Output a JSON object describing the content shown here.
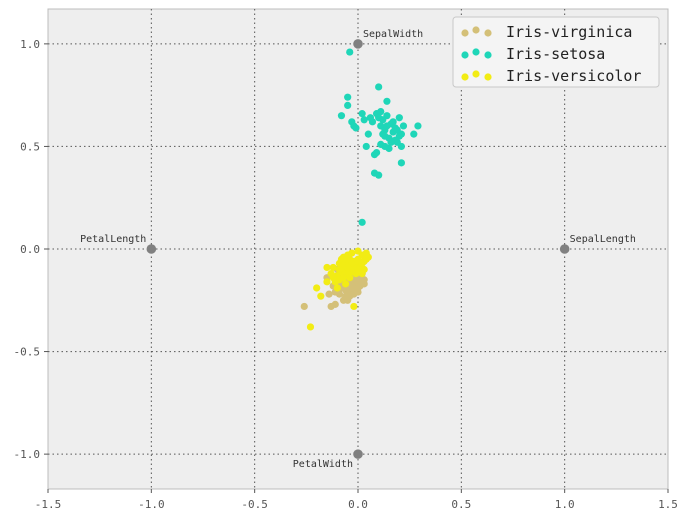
{
  "chart_data": {
    "type": "scatter",
    "title": "",
    "xlabel": "",
    "ylabel": "",
    "xlim": [
      -1.5,
      1.5
    ],
    "ylim": [
      -1.17,
      1.17
    ],
    "grid": true,
    "legend_position": "top-right",
    "xticks": [
      -1.5,
      -1.0,
      -0.5,
      0.0,
      0.5,
      1.0,
      1.5
    ],
    "xtick_labels": [
      "-1.5",
      "-1.0",
      "-0.5",
      "0.0",
      "0.5",
      "1.0",
      "1.5"
    ],
    "yticks": [
      -1.0,
      -0.5,
      0.0,
      0.5,
      1.0
    ],
    "ytick_labels": [
      "-1.0",
      "-0.5",
      "0.0",
      "0.5",
      "1.0"
    ],
    "anchors": [
      {
        "label": "SepalLength",
        "x": 1.0,
        "y": 0.0,
        "label_side": "top-right"
      },
      {
        "label": "SepalWidth",
        "x": 0.0,
        "y": 1.0,
        "label_side": "top-right"
      },
      {
        "label": "PetalLength",
        "x": -1.0,
        "y": 0.0,
        "label_side": "top-left"
      },
      {
        "label": "PetalWidth",
        "x": 0.0,
        "y": -1.0,
        "label_side": "bottom-left"
      }
    ],
    "anchor_color": "#808080",
    "series": [
      {
        "name": "Iris-virginica",
        "color": "#d4c078",
        "points": [
          [
            -0.26,
            -0.28
          ],
          [
            -0.14,
            -0.22
          ],
          [
            -0.13,
            -0.28
          ],
          [
            -0.11,
            -0.27
          ],
          [
            -0.07,
            -0.25
          ],
          [
            -0.05,
            -0.25
          ],
          [
            -0.06,
            -0.2
          ],
          [
            -0.04,
            -0.21
          ],
          [
            -0.02,
            -0.22
          ],
          [
            0.0,
            -0.21
          ],
          [
            -0.13,
            -0.13
          ],
          [
            -0.11,
            -0.15
          ],
          [
            -0.09,
            -0.17
          ],
          [
            -0.08,
            -0.12
          ],
          [
            -0.07,
            -0.15
          ],
          [
            -0.06,
            -0.18
          ],
          [
            -0.05,
            -0.14
          ],
          [
            -0.04,
            -0.16
          ],
          [
            -0.03,
            -0.17
          ],
          [
            -0.02,
            -0.15
          ],
          [
            -0.01,
            -0.16
          ],
          [
            0.0,
            -0.17
          ],
          [
            0.01,
            -0.14
          ],
          [
            0.02,
            -0.16
          ],
          [
            0.03,
            -0.15
          ],
          [
            -0.1,
            -0.1
          ],
          [
            -0.08,
            -0.19
          ],
          [
            -0.06,
            -0.11
          ],
          [
            -0.05,
            -0.2
          ],
          [
            -0.03,
            -0.12
          ],
          [
            -0.02,
            -0.18
          ],
          [
            0.0,
            -0.13
          ],
          [
            0.01,
            -0.18
          ],
          [
            0.02,
            -0.12
          ],
          [
            -0.12,
            -0.18
          ],
          [
            -0.09,
            -0.22
          ],
          [
            -0.04,
            -0.23
          ],
          [
            -0.01,
            -0.2
          ],
          [
            0.03,
            -0.17
          ],
          [
            -0.07,
            -0.08
          ],
          [
            -0.15,
            -0.14
          ],
          [
            -0.11,
            -0.21
          ],
          [
            -0.06,
            -0.23
          ],
          [
            -0.03,
            -0.19
          ],
          [
            0.01,
            -0.15
          ],
          [
            -0.08,
            -0.14
          ],
          [
            -0.05,
            -0.17
          ],
          [
            -0.02,
            -0.13
          ],
          [
            0.0,
            -0.19
          ],
          [
            -0.1,
            -0.16
          ]
        ]
      },
      {
        "name": "Iris-setosa",
        "color": "#1fd6b8",
        "points": [
          [
            -0.04,
            0.96
          ],
          [
            0.1,
            0.79
          ],
          [
            -0.05,
            0.74
          ],
          [
            0.14,
            0.72
          ],
          [
            -0.05,
            0.7
          ],
          [
            -0.08,
            0.65
          ],
          [
            0.09,
            0.66
          ],
          [
            0.11,
            0.67
          ],
          [
            0.14,
            0.65
          ],
          [
            0.2,
            0.64
          ],
          [
            0.02,
            0.66
          ],
          [
            0.07,
            0.62
          ],
          [
            0.1,
            0.64
          ],
          [
            0.16,
            0.61
          ],
          [
            0.22,
            0.6
          ],
          [
            -0.03,
            0.62
          ],
          [
            0.03,
            0.63
          ],
          [
            0.11,
            0.6
          ],
          [
            0.18,
            0.59
          ],
          [
            0.29,
            0.6
          ],
          [
            -0.02,
            0.6
          ],
          [
            0.05,
            0.56
          ],
          [
            0.13,
            0.58
          ],
          [
            0.17,
            0.57
          ],
          [
            0.21,
            0.56
          ],
          [
            -0.01,
            0.59
          ],
          [
            0.12,
            0.56
          ],
          [
            0.15,
            0.54
          ],
          [
            0.2,
            0.55
          ],
          [
            0.27,
            0.56
          ],
          [
            0.04,
            0.5
          ],
          [
            0.11,
            0.51
          ],
          [
            0.15,
            0.49
          ],
          [
            0.19,
            0.52
          ],
          [
            0.21,
            0.5
          ],
          [
            0.08,
            0.46
          ],
          [
            0.09,
            0.47
          ],
          [
            0.13,
            0.5
          ],
          [
            0.18,
            0.53
          ],
          [
            0.21,
            0.42
          ],
          [
            0.08,
            0.37
          ],
          [
            0.1,
            0.36
          ],
          [
            0.02,
            0.13
          ],
          [
            0.14,
            0.6
          ],
          [
            0.16,
            0.52
          ],
          [
            0.19,
            0.58
          ],
          [
            0.12,
            0.63
          ],
          [
            0.06,
            0.64
          ],
          [
            0.17,
            0.62
          ],
          [
            0.13,
            0.55
          ]
        ]
      },
      {
        "name": "Iris-versicolor",
        "color": "#f2ec14",
        "points": [
          [
            -0.23,
            -0.38
          ],
          [
            -0.02,
            -0.28
          ],
          [
            -0.2,
            -0.19
          ],
          [
            -0.18,
            -0.23
          ],
          [
            -0.15,
            -0.16
          ],
          [
            -0.13,
            -0.12
          ],
          [
            -0.15,
            -0.09
          ],
          [
            -0.12,
            -0.09
          ],
          [
            -0.09,
            -0.07
          ],
          [
            -0.07,
            -0.04
          ],
          [
            -0.05,
            -0.03
          ],
          [
            -0.03,
            -0.02
          ],
          [
            0.0,
            -0.01
          ],
          [
            0.02,
            -0.03
          ],
          [
            0.04,
            -0.02
          ],
          [
            0.05,
            -0.04
          ],
          [
            0.03,
            -0.06
          ],
          [
            0.01,
            -0.08
          ],
          [
            -0.01,
            -0.09
          ],
          [
            -0.04,
            -0.08
          ],
          [
            -0.06,
            -0.1
          ],
          [
            -0.08,
            -0.11
          ],
          [
            -0.1,
            -0.13
          ],
          [
            -0.12,
            -0.14
          ],
          [
            -0.08,
            -0.05
          ],
          [
            -0.06,
            -0.06
          ],
          [
            -0.04,
            -0.05
          ],
          [
            -0.02,
            -0.06
          ],
          [
            0.0,
            -0.05
          ],
          [
            0.02,
            -0.07
          ],
          [
            0.03,
            -0.1
          ],
          [
            0.01,
            -0.11
          ],
          [
            -0.01,
            -0.12
          ],
          [
            -0.03,
            -0.11
          ],
          [
            -0.05,
            -0.12
          ],
          [
            -0.07,
            -0.14
          ],
          [
            -0.09,
            -0.15
          ],
          [
            -0.11,
            -0.16
          ],
          [
            -0.1,
            -0.19
          ],
          [
            -0.06,
            -0.17
          ],
          [
            -0.04,
            -0.14
          ],
          [
            -0.02,
            -0.09
          ],
          [
            0.0,
            -0.1
          ],
          [
            0.02,
            -0.12
          ],
          [
            -0.01,
            -0.06
          ],
          [
            -0.03,
            -0.07
          ],
          [
            -0.07,
            -0.08
          ],
          [
            -0.09,
            -0.1
          ],
          [
            0.04,
            -0.05
          ],
          [
            -0.05,
            -0.09
          ]
        ]
      }
    ]
  }
}
